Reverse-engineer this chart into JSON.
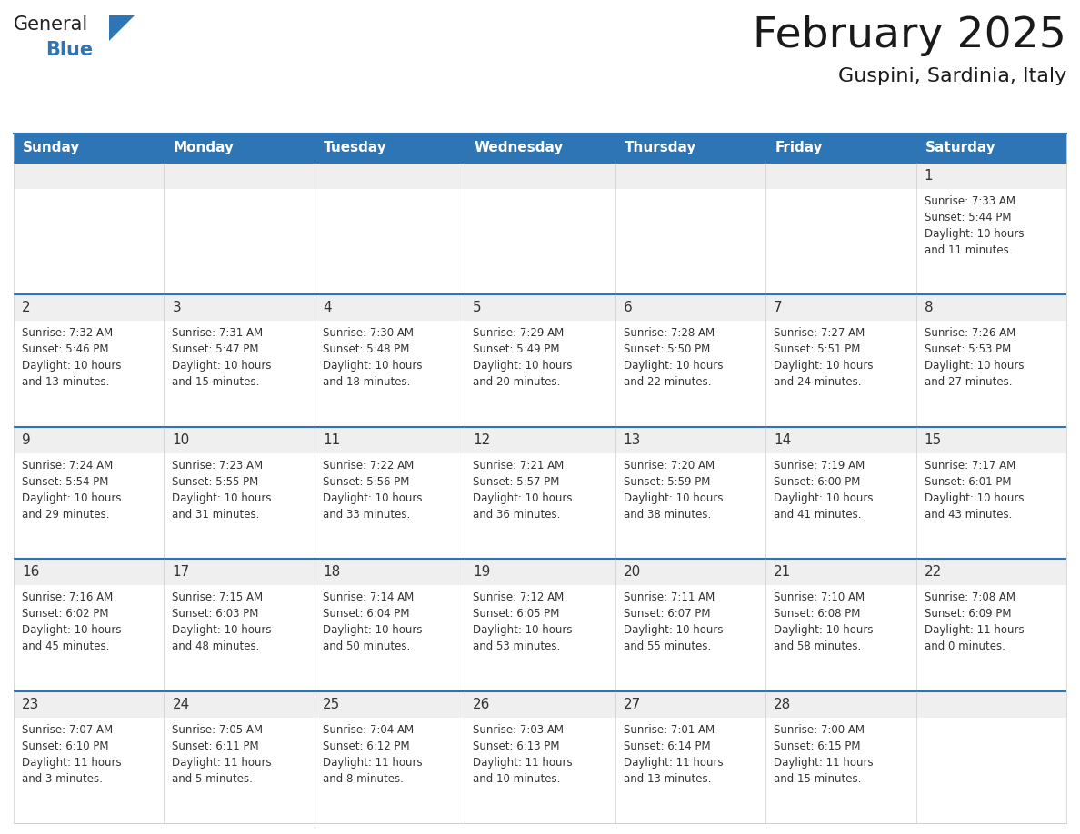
{
  "title": "February 2025",
  "subtitle": "Guspini, Sardinia, Italy",
  "header_bg": "#2E75B6",
  "header_text_color": "#FFFFFF",
  "cell_bg_light": "#EFEFEF",
  "cell_bg_white": "#FFFFFF",
  "cell_border_color": "#2E75B6",
  "day_number_color": "#333333",
  "cell_text_color": "#333333",
  "days_of_week": [
    "Sunday",
    "Monday",
    "Tuesday",
    "Wednesday",
    "Thursday",
    "Friday",
    "Saturday"
  ],
  "weeks": [
    [
      {
        "day": "",
        "info": ""
      },
      {
        "day": "",
        "info": ""
      },
      {
        "day": "",
        "info": ""
      },
      {
        "day": "",
        "info": ""
      },
      {
        "day": "",
        "info": ""
      },
      {
        "day": "",
        "info": ""
      },
      {
        "day": "1",
        "info": "Sunrise: 7:33 AM\nSunset: 5:44 PM\nDaylight: 10 hours\nand 11 minutes."
      }
    ],
    [
      {
        "day": "2",
        "info": "Sunrise: 7:32 AM\nSunset: 5:46 PM\nDaylight: 10 hours\nand 13 minutes."
      },
      {
        "day": "3",
        "info": "Sunrise: 7:31 AM\nSunset: 5:47 PM\nDaylight: 10 hours\nand 15 minutes."
      },
      {
        "day": "4",
        "info": "Sunrise: 7:30 AM\nSunset: 5:48 PM\nDaylight: 10 hours\nand 18 minutes."
      },
      {
        "day": "5",
        "info": "Sunrise: 7:29 AM\nSunset: 5:49 PM\nDaylight: 10 hours\nand 20 minutes."
      },
      {
        "day": "6",
        "info": "Sunrise: 7:28 AM\nSunset: 5:50 PM\nDaylight: 10 hours\nand 22 minutes."
      },
      {
        "day": "7",
        "info": "Sunrise: 7:27 AM\nSunset: 5:51 PM\nDaylight: 10 hours\nand 24 minutes."
      },
      {
        "day": "8",
        "info": "Sunrise: 7:26 AM\nSunset: 5:53 PM\nDaylight: 10 hours\nand 27 minutes."
      }
    ],
    [
      {
        "day": "9",
        "info": "Sunrise: 7:24 AM\nSunset: 5:54 PM\nDaylight: 10 hours\nand 29 minutes."
      },
      {
        "day": "10",
        "info": "Sunrise: 7:23 AM\nSunset: 5:55 PM\nDaylight: 10 hours\nand 31 minutes."
      },
      {
        "day": "11",
        "info": "Sunrise: 7:22 AM\nSunset: 5:56 PM\nDaylight: 10 hours\nand 33 minutes."
      },
      {
        "day": "12",
        "info": "Sunrise: 7:21 AM\nSunset: 5:57 PM\nDaylight: 10 hours\nand 36 minutes."
      },
      {
        "day": "13",
        "info": "Sunrise: 7:20 AM\nSunset: 5:59 PM\nDaylight: 10 hours\nand 38 minutes."
      },
      {
        "day": "14",
        "info": "Sunrise: 7:19 AM\nSunset: 6:00 PM\nDaylight: 10 hours\nand 41 minutes."
      },
      {
        "day": "15",
        "info": "Sunrise: 7:17 AM\nSunset: 6:01 PM\nDaylight: 10 hours\nand 43 minutes."
      }
    ],
    [
      {
        "day": "16",
        "info": "Sunrise: 7:16 AM\nSunset: 6:02 PM\nDaylight: 10 hours\nand 45 minutes."
      },
      {
        "day": "17",
        "info": "Sunrise: 7:15 AM\nSunset: 6:03 PM\nDaylight: 10 hours\nand 48 minutes."
      },
      {
        "day": "18",
        "info": "Sunrise: 7:14 AM\nSunset: 6:04 PM\nDaylight: 10 hours\nand 50 minutes."
      },
      {
        "day": "19",
        "info": "Sunrise: 7:12 AM\nSunset: 6:05 PM\nDaylight: 10 hours\nand 53 minutes."
      },
      {
        "day": "20",
        "info": "Sunrise: 7:11 AM\nSunset: 6:07 PM\nDaylight: 10 hours\nand 55 minutes."
      },
      {
        "day": "21",
        "info": "Sunrise: 7:10 AM\nSunset: 6:08 PM\nDaylight: 10 hours\nand 58 minutes."
      },
      {
        "day": "22",
        "info": "Sunrise: 7:08 AM\nSunset: 6:09 PM\nDaylight: 11 hours\nand 0 minutes."
      }
    ],
    [
      {
        "day": "23",
        "info": "Sunrise: 7:07 AM\nSunset: 6:10 PM\nDaylight: 11 hours\nand 3 minutes."
      },
      {
        "day": "24",
        "info": "Sunrise: 7:05 AM\nSunset: 6:11 PM\nDaylight: 11 hours\nand 5 minutes."
      },
      {
        "day": "25",
        "info": "Sunrise: 7:04 AM\nSunset: 6:12 PM\nDaylight: 11 hours\nand 8 minutes."
      },
      {
        "day": "26",
        "info": "Sunrise: 7:03 AM\nSunset: 6:13 PM\nDaylight: 11 hours\nand 10 minutes."
      },
      {
        "day": "27",
        "info": "Sunrise: 7:01 AM\nSunset: 6:14 PM\nDaylight: 11 hours\nand 13 minutes."
      },
      {
        "day": "28",
        "info": "Sunrise: 7:00 AM\nSunset: 6:15 PM\nDaylight: 11 hours\nand 15 minutes."
      },
      {
        "day": "",
        "info": ""
      }
    ]
  ],
  "logo_text_general": "General",
  "logo_text_blue": "Blue",
  "logo_triangle_color": "#2E75B6",
  "logo_general_color": "#222222"
}
